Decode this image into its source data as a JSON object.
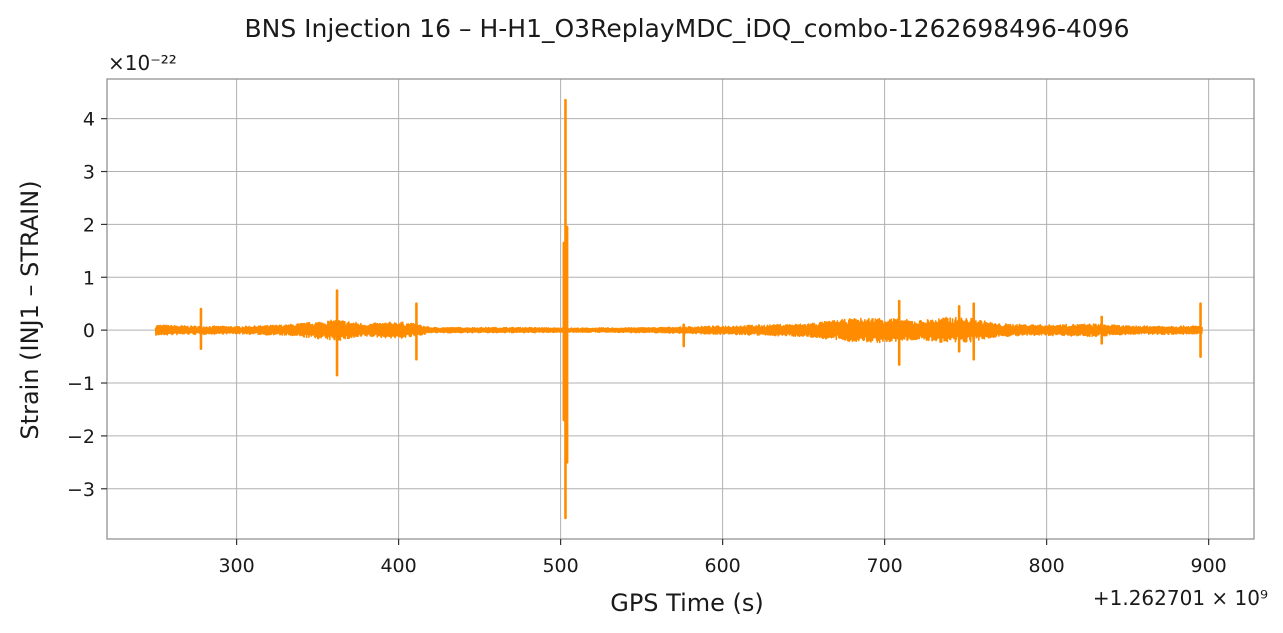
{
  "chart_data": {
    "type": "line",
    "title": "BNS Injection 16 – H-H1_O3ReplayMDC_iDQ_combo-1262698496-4096",
    "xlabel": "GPS Time (s)",
    "ylabel": "Strain (INJ1 – STRAIN)",
    "x_offset_label": "+1.262701 × 10⁹",
    "y_scale_label": "×10⁻²²",
    "xlim": [
      220,
      928
    ],
    "ylim": [
      -3.95,
      4.75
    ],
    "x_ticks": [
      300,
      400,
      500,
      600,
      700,
      800,
      900
    ],
    "y_ticks": [
      -3,
      -2,
      -1,
      0,
      1,
      2,
      3,
      4
    ],
    "x_tick_labels": [
      "300",
      "400",
      "500",
      "600",
      "700",
      "800",
      "900"
    ],
    "y_tick_labels": [
      "−3",
      "−2",
      "−1",
      "0",
      "1",
      "2",
      "3",
      "4"
    ],
    "grid": true,
    "series": [
      {
        "color": "#ff8c00",
        "x_range": [
          250,
          896
        ],
        "baseline_noise": [
          [
            250,
            0.1
          ],
          [
            270,
            0.08
          ],
          [
            300,
            0.07
          ],
          [
            330,
            0.1
          ],
          [
            350,
            0.16
          ],
          [
            362,
            0.2
          ],
          [
            380,
            0.12
          ],
          [
            400,
            0.16
          ],
          [
            410,
            0.12
          ],
          [
            420,
            0.05
          ],
          [
            480,
            0.05
          ],
          [
            500,
            0.04
          ],
          [
            520,
            0.04
          ],
          [
            560,
            0.05
          ],
          [
            600,
            0.08
          ],
          [
            650,
            0.12
          ],
          [
            680,
            0.22
          ],
          [
            700,
            0.24
          ],
          [
            720,
            0.18
          ],
          [
            740,
            0.25
          ],
          [
            755,
            0.22
          ],
          [
            770,
            0.12
          ],
          [
            800,
            0.1
          ],
          [
            830,
            0.12
          ],
          [
            850,
            0.08
          ],
          [
            896,
            0.08
          ]
        ],
        "spikes": [
          {
            "x": 278,
            "max": 0.4,
            "min": -0.35
          },
          {
            "x": 362,
            "max": 0.75,
            "min": -0.85
          },
          {
            "x": 411,
            "max": 0.5,
            "min": -0.55
          },
          {
            "x": 502,
            "max": 1.65,
            "min": -1.7
          },
          {
            "x": 503,
            "max": 4.35,
            "min": -3.55
          },
          {
            "x": 504,
            "max": 1.95,
            "min": -2.5
          },
          {
            "x": 576,
            "max": 0.1,
            "min": -0.3
          },
          {
            "x": 709,
            "max": 0.55,
            "min": -0.65
          },
          {
            "x": 746,
            "max": 0.45,
            "min": -0.4
          },
          {
            "x": 755,
            "max": 0.5,
            "min": -0.55
          },
          {
            "x": 834,
            "max": 0.25,
            "min": -0.25
          },
          {
            "x": 895,
            "max": 0.5,
            "min": -0.5
          }
        ]
      }
    ]
  }
}
